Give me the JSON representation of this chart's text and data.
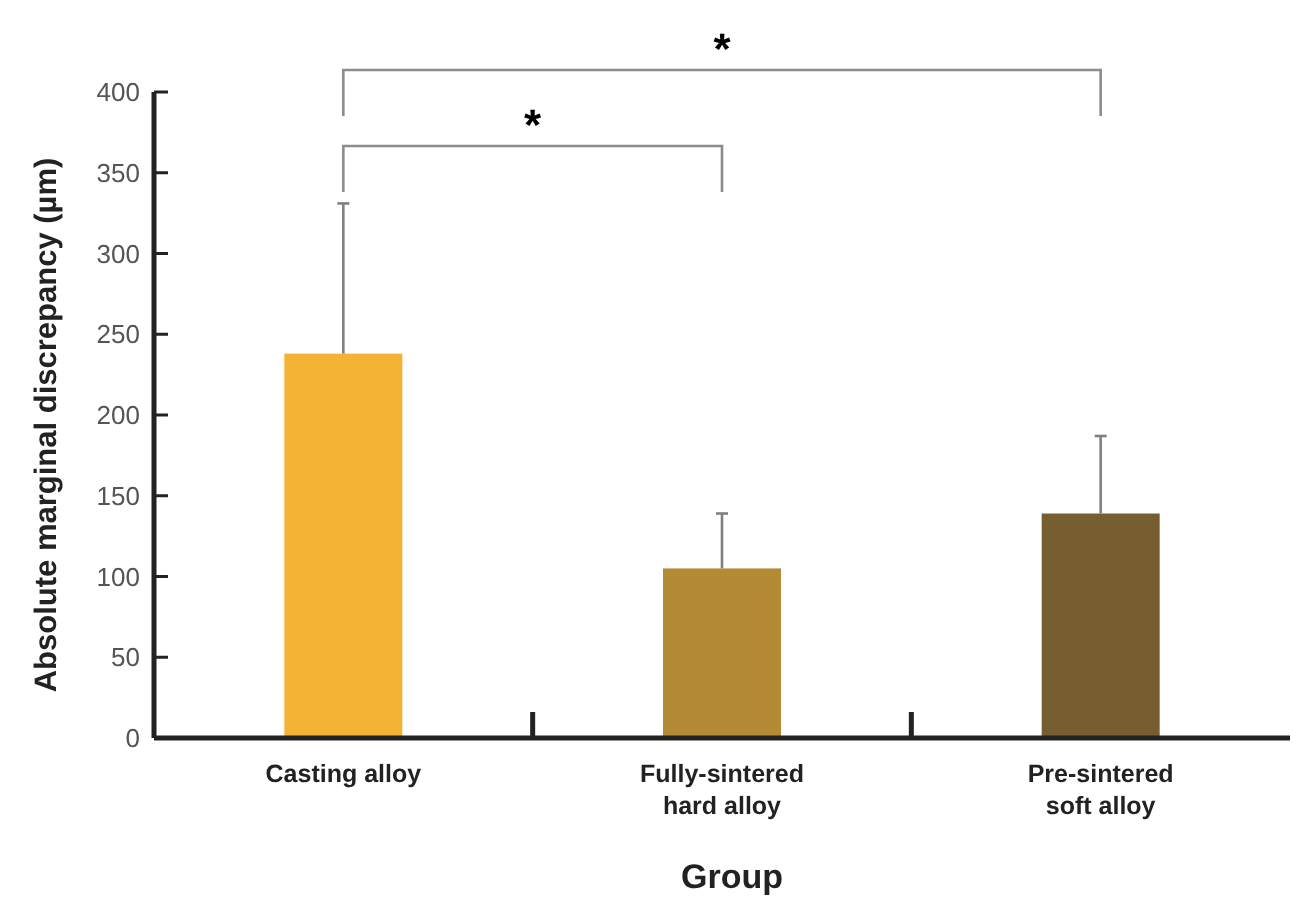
{
  "chart_data": {
    "type": "bar",
    "xlabel": "Group",
    "ylabel": "Absolute marginal discrepancy (µm)",
    "categories": [
      "Casting alloy",
      "Fully-sintered hard alloy",
      "Pre-sintered soft alloy"
    ],
    "values": [
      238,
      105,
      139
    ],
    "colors": [
      "#f4b334",
      "#b58a35",
      "#775e30"
    ],
    "errors": [
      [
        238,
        331
      ],
      [
        105,
        139
      ],
      [
        139,
        187
      ]
    ],
    "ylim": [
      0,
      400
    ],
    "yticks": [
      0,
      50,
      100,
      150,
      200,
      250,
      300,
      350,
      400
    ],
    "grid": false,
    "annotations": [
      "*",
      "*"
    ]
  }
}
